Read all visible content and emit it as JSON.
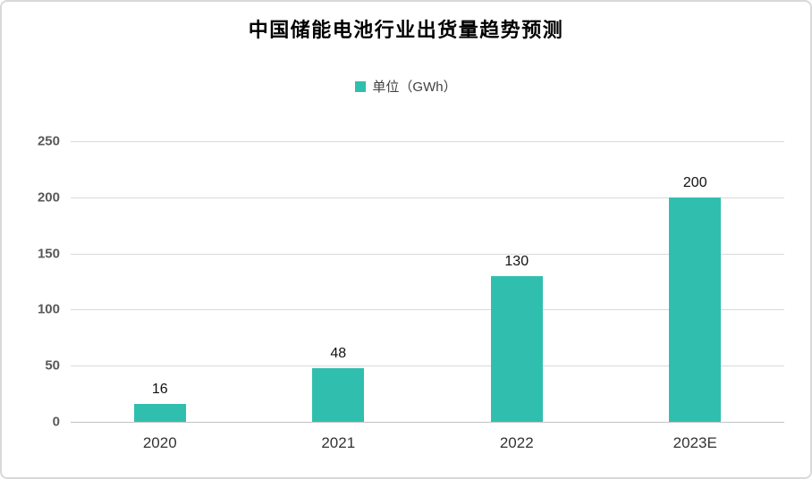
{
  "chart": {
    "title": "中国储能电池行业出货量趋势预测",
    "legend": {
      "label": "单位（GWh）"
    },
    "colors": {
      "bar": "#30bfae",
      "gridline": "#d9d9d9",
      "axis_tick_text": "#595959",
      "category_text": "#333333",
      "frame_border": "#d9d9d9",
      "background": "#ffffff"
    }
  },
  "chart_data": {
    "type": "bar",
    "title": "中国储能电池行业出货量趋势预测",
    "categories": [
      "2020",
      "2021",
      "2022",
      "2023E"
    ],
    "values": [
      16,
      48,
      130,
      200
    ],
    "series": [
      {
        "name": "单位（GWh）",
        "values": [
          16,
          48,
          130,
          200
        ]
      }
    ],
    "legend": [
      "单位（GWh）"
    ],
    "legend_position": "top-center",
    "xlabel": "",
    "ylabel": "",
    "ylim": [
      0,
      250
    ],
    "yticks": [
      0,
      50,
      100,
      150,
      200,
      250
    ],
    "grid": true,
    "data_labels": true,
    "bar_color": "#30bfae"
  }
}
